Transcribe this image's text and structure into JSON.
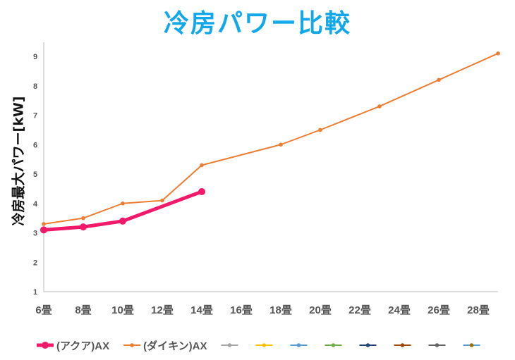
{
  "chart_data": {
    "type": "line",
    "title": "冷房パワー比較",
    "xlabel": "",
    "ylabel": "冷房最大パワー[kW]",
    "xlim": [
      6,
      29
    ],
    "ylim": [
      1,
      9
    ],
    "x_ticks": [
      6,
      8,
      10,
      12,
      14,
      16,
      18,
      20,
      22,
      24,
      26,
      28
    ],
    "x_tick_labels": [
      "6畳",
      "8畳",
      "10畳",
      "12畳",
      "14畳",
      "16畳",
      "18畳",
      "20畳",
      "22畳",
      "24畳",
      "26畳",
      "28畳"
    ],
    "y_ticks": [
      1,
      2,
      3,
      4,
      5,
      6,
      7,
      8,
      9
    ],
    "legend_position": "bottom",
    "series": [
      {
        "name": "(アクア)AX",
        "color": "#f0196a",
        "x": [
          6,
          8,
          10,
          14
        ],
        "values": [
          3.1,
          3.2,
          3.4,
          4.4
        ]
      },
      {
        "name": "(ダイキン)AX",
        "color": "#ed7d31",
        "x": [
          6,
          8,
          10,
          12,
          14,
          18,
          20,
          23,
          26,
          29
        ],
        "values": [
          3.3,
          3.5,
          4.0,
          4.1,
          5.3,
          6.0,
          6.5,
          7.3,
          8.2,
          9.1
        ]
      },
      {
        "name": "",
        "color": "#a5a5a5",
        "x": [],
        "values": []
      },
      {
        "name": "",
        "color": "#ffc000",
        "x": [],
        "values": []
      },
      {
        "name": "",
        "color": "#5b9bd5",
        "x": [],
        "values": []
      },
      {
        "name": "",
        "color": "#70ad47",
        "x": [],
        "values": []
      },
      {
        "name": "",
        "color": "#264478",
        "x": [],
        "values": []
      },
      {
        "name": "",
        "color": "#9e480e",
        "x": [],
        "values": []
      },
      {
        "name": "",
        "color": "#636363",
        "x": [],
        "values": []
      },
      {
        "name": "",
        "color": "#5b9bd5",
        "marker_color": "#997300",
        "x": [],
        "values": []
      }
    ]
  }
}
